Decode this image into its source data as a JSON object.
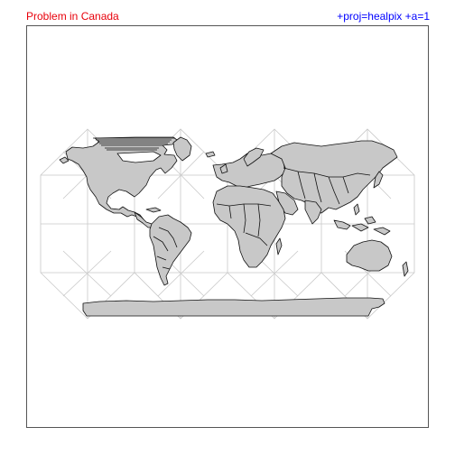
{
  "header": {
    "left_title": "Problem in Canada",
    "right_title": "+proj=healpix +a=1"
  },
  "colors": {
    "left_title": "#e8000b",
    "right_title": "#0000ff",
    "land_fill": "#c8c8c8",
    "land_stroke": "#111111",
    "graticule": "#c8c8c8",
    "frame": "#555555"
  }
}
